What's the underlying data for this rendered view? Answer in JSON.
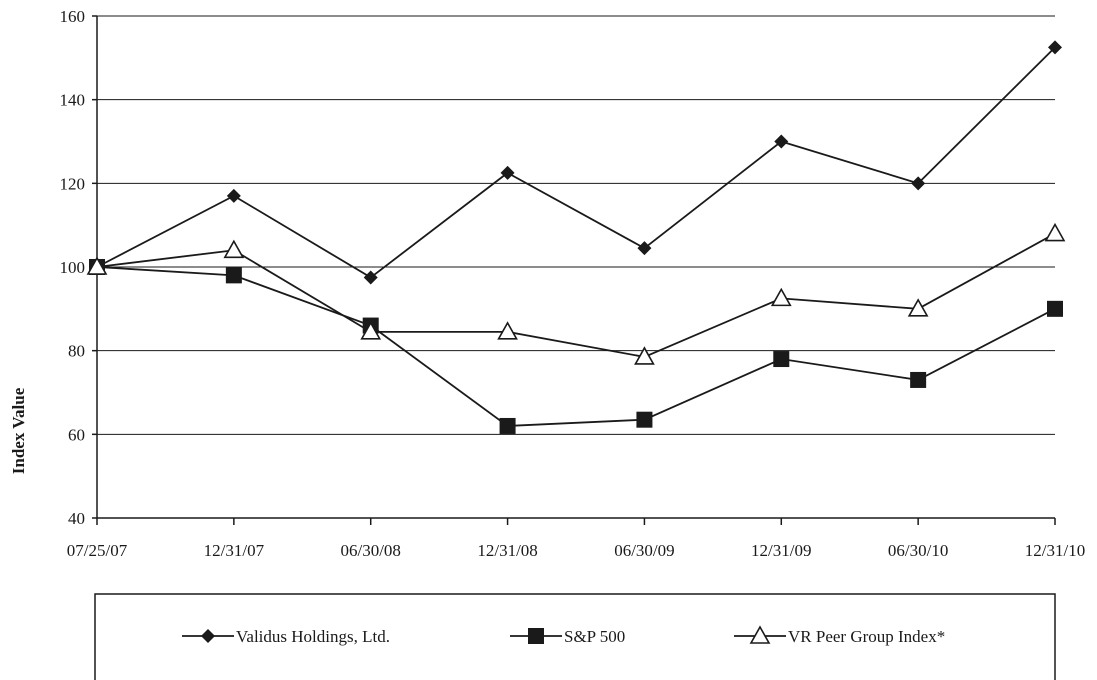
{
  "chart_data": {
    "type": "line",
    "categories": [
      "07/25/07",
      "12/31/07",
      "06/30/08",
      "12/31/08",
      "06/30/09",
      "12/31/09",
      "06/30/10",
      "12/31/10"
    ],
    "ylabel": "Index Value",
    "xlabel": "",
    "ylim": [
      40,
      160
    ],
    "yticks": [
      40,
      60,
      80,
      100,
      120,
      140,
      160
    ],
    "grid": "horizontal",
    "legend_position": "bottom",
    "series": [
      {
        "name": "Validus Holdings, Ltd.",
        "marker": "diamond",
        "color": "#1a1a1a",
        "values": [
          100,
          117,
          97.5,
          122.5,
          104.5,
          130,
          120,
          152.5
        ]
      },
      {
        "name": "S&P 500",
        "marker": "square",
        "color": "#1a1a1a",
        "values": [
          100,
          98,
          86,
          62,
          63.5,
          78,
          73,
          90
        ]
      },
      {
        "name": "VR Peer Group Index*",
        "marker": "triangle-open",
        "color": "#1a1a1a",
        "values": [
          100,
          104,
          84.5,
          84.5,
          78.5,
          92.5,
          90,
          108
        ]
      }
    ]
  }
}
